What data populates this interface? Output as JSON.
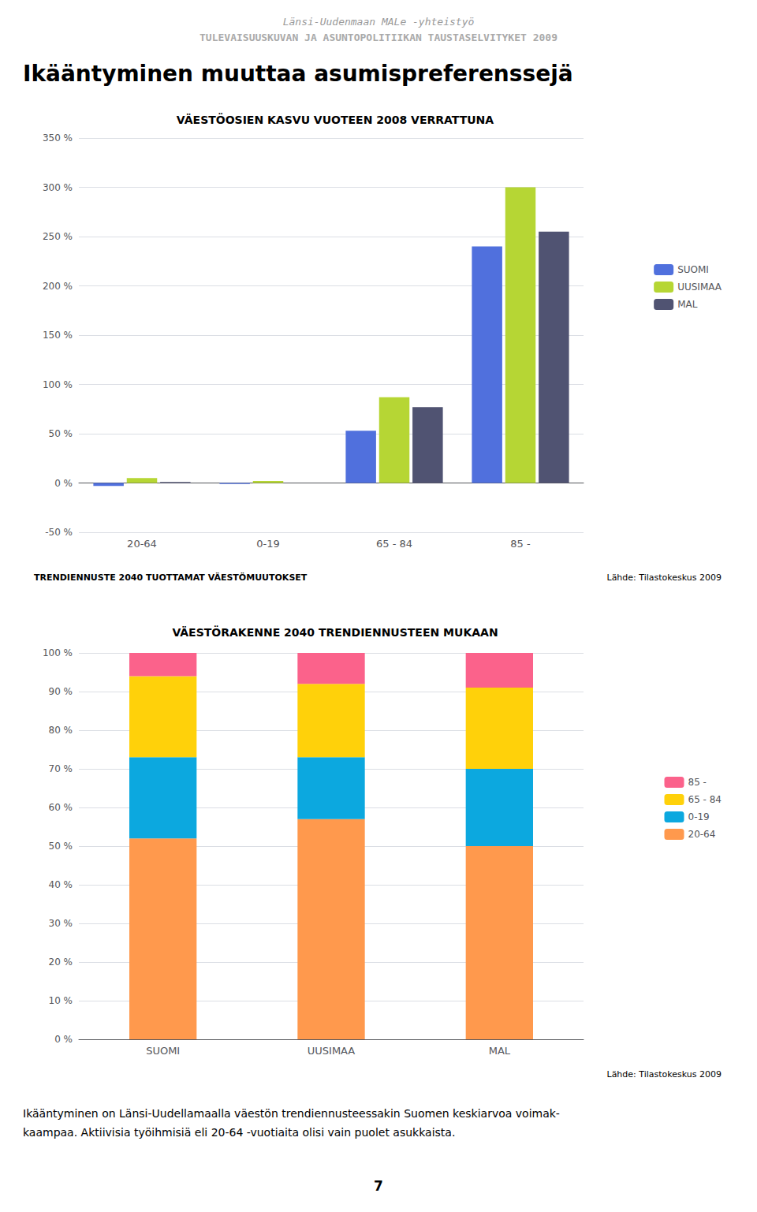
{
  "header": [
    "Länsi-Uudenmaan MALe -yhteistyö",
    "TULEVAISUUSKUVAN JA ASUNTOPOLITIIKAN TAUSTASELVITYKET 2009"
  ],
  "title": "Ikääntyminen muuttaa asumispreferenssejä",
  "chart_data": [
    {
      "type": "bar",
      "title": "VÄESTÖOSIEN KASVU VUOTEEN 2008 VERRATTUNA",
      "categories": [
        "20-64",
        "0-19",
        "65 - 84",
        "85 -"
      ],
      "series": [
        {
          "name": "SUOMI",
          "values": [
            -3,
            -1,
            53,
            240
          ]
        },
        {
          "name": "UUSIMAA",
          "values": [
            5,
            2,
            87,
            300
          ]
        },
        {
          "name": "MAL",
          "values": [
            1,
            0,
            77,
            255
          ]
        }
      ],
      "ylim": [
        -50,
        350
      ],
      "yticks": [
        {
          "value": -50,
          "label": "-50 %"
        },
        {
          "value": 0,
          "label": "0 %"
        },
        {
          "value": 50,
          "label": "50 %"
        },
        {
          "value": 100,
          "label": "100 %"
        },
        {
          "value": 150,
          "label": "150 %"
        },
        {
          "value": 200,
          "label": "200 %"
        },
        {
          "value": 250,
          "label": "250 %"
        },
        {
          "value": 300,
          "label": "300 %"
        },
        {
          "value": 350,
          "label": "350 %"
        }
      ],
      "grid": true,
      "legend": "right",
      "annotations": [
        "TRENDIENNUSTE 2040 TUOTTAMAT VÄESTÖMUUTOKSET",
        "Lähde: Tilastokeskus 2009"
      ]
    },
    {
      "type": "bar",
      "title": "VÄESTÖRAKENNE 2040 TRENDIENNUSTEEN MUKAAN",
      "categories": [
        "SUOMI",
        "UUSIMAA",
        "MAL"
      ],
      "series": [
        {
          "name": "20-64",
          "values": [
            52,
            57,
            50
          ]
        },
        {
          "name": "0-19",
          "values": [
            21,
            16,
            20
          ]
        },
        {
          "name": "65 - 84",
          "values": [
            21,
            19,
            21
          ]
        },
        {
          "name": "85 -",
          "values": [
            6,
            8,
            9
          ]
        }
      ],
      "stacked": true,
      "ylim": [
        0,
        100
      ],
      "yticks": [
        {
          "value": 0,
          "label": "0 %"
        },
        {
          "value": 10,
          "label": "10 %"
        },
        {
          "value": 20,
          "label": "20 %"
        },
        {
          "value": 30,
          "label": "30 %"
        },
        {
          "value": 40,
          "label": "40 %"
        },
        {
          "value": 50,
          "label": "50 %"
        },
        {
          "value": 60,
          "label": "60 %"
        },
        {
          "value": 70,
          "label": "70 %"
        },
        {
          "value": 80,
          "label": "80 %"
        },
        {
          "value": 90,
          "label": "90 %"
        },
        {
          "value": 100,
          "label": "100 %"
        }
      ],
      "grid": true,
      "legend": "right",
      "annotations": [
        "Lähde: Tilastokeskus 2009"
      ]
    }
  ],
  "footer": [
    "Ikääntyminen on Länsi-Uudellamaalla väestön trendiennusteessakin Suomen keskiarvoa voimak-",
    "kaampaa. Aktiivisia työihmisiä eli 20-64 -vuotiaita olisi vain puolet asukkaista."
  ],
  "page_number": "7"
}
